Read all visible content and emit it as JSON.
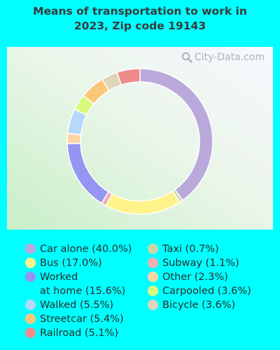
{
  "title_lines": [
    "Means of transportation to work in",
    "2023, Zip code 19143"
  ],
  "watermark": "City-Data.com",
  "chart_data": {
    "type": "pie",
    "variant": "donut",
    "title": "Means of transportation to work in 2023, Zip code 19143",
    "unit": "%",
    "start_angle_deg": 0,
    "series": [
      {
        "name": "Car alone",
        "label": "Car alone (40.0%)",
        "value": 40.0,
        "color": "#bba9dc"
      },
      {
        "name": "Taxi",
        "label": "Taxi (0.7%)",
        "value": 0.7,
        "color": "#c9d8a9"
      },
      {
        "name": "Bus",
        "label": "Bus (17.0%)",
        "value": 17.0,
        "color": "#fdf38a"
      },
      {
        "name": "Subway",
        "label": "Subway (1.1%)",
        "value": 1.1,
        "color": "#f4aeb1"
      },
      {
        "name": "Worked at home",
        "label_lines": [
          "Worked",
          "at home (15.6%)"
        ],
        "value": 15.6,
        "color": "#9497f1"
      },
      {
        "name": "Other",
        "label": "Other (2.3%)",
        "value": 2.3,
        "color": "#fcd5a6"
      },
      {
        "name": "Walked",
        "label": "Walked (5.5%)",
        "value": 5.5,
        "color": "#b5d8fb"
      },
      {
        "name": "Carpooled",
        "label": "Carpooled (3.6%)",
        "value": 3.6,
        "color": "#d8fa7d"
      },
      {
        "name": "Streetcar",
        "label": "Streetcar (5.4%)",
        "value": 5.4,
        "color": "#fdc77a"
      },
      {
        "name": "Bicycle",
        "label": "Bicycle (3.6%)",
        "value": 3.6,
        "color": "#ddd6bb"
      },
      {
        "name": "Railroad",
        "label": "Railroad (5.1%)",
        "value": 5.1,
        "color": "#ee8c8b"
      }
    ],
    "legend_columns": [
      [
        "Car alone",
        "Bus",
        "Worked at home",
        "Walked",
        "Streetcar",
        "Railroad"
      ],
      [
        "Taxi",
        "Subway",
        "Other",
        "Carpooled",
        "Bicycle"
      ]
    ]
  }
}
